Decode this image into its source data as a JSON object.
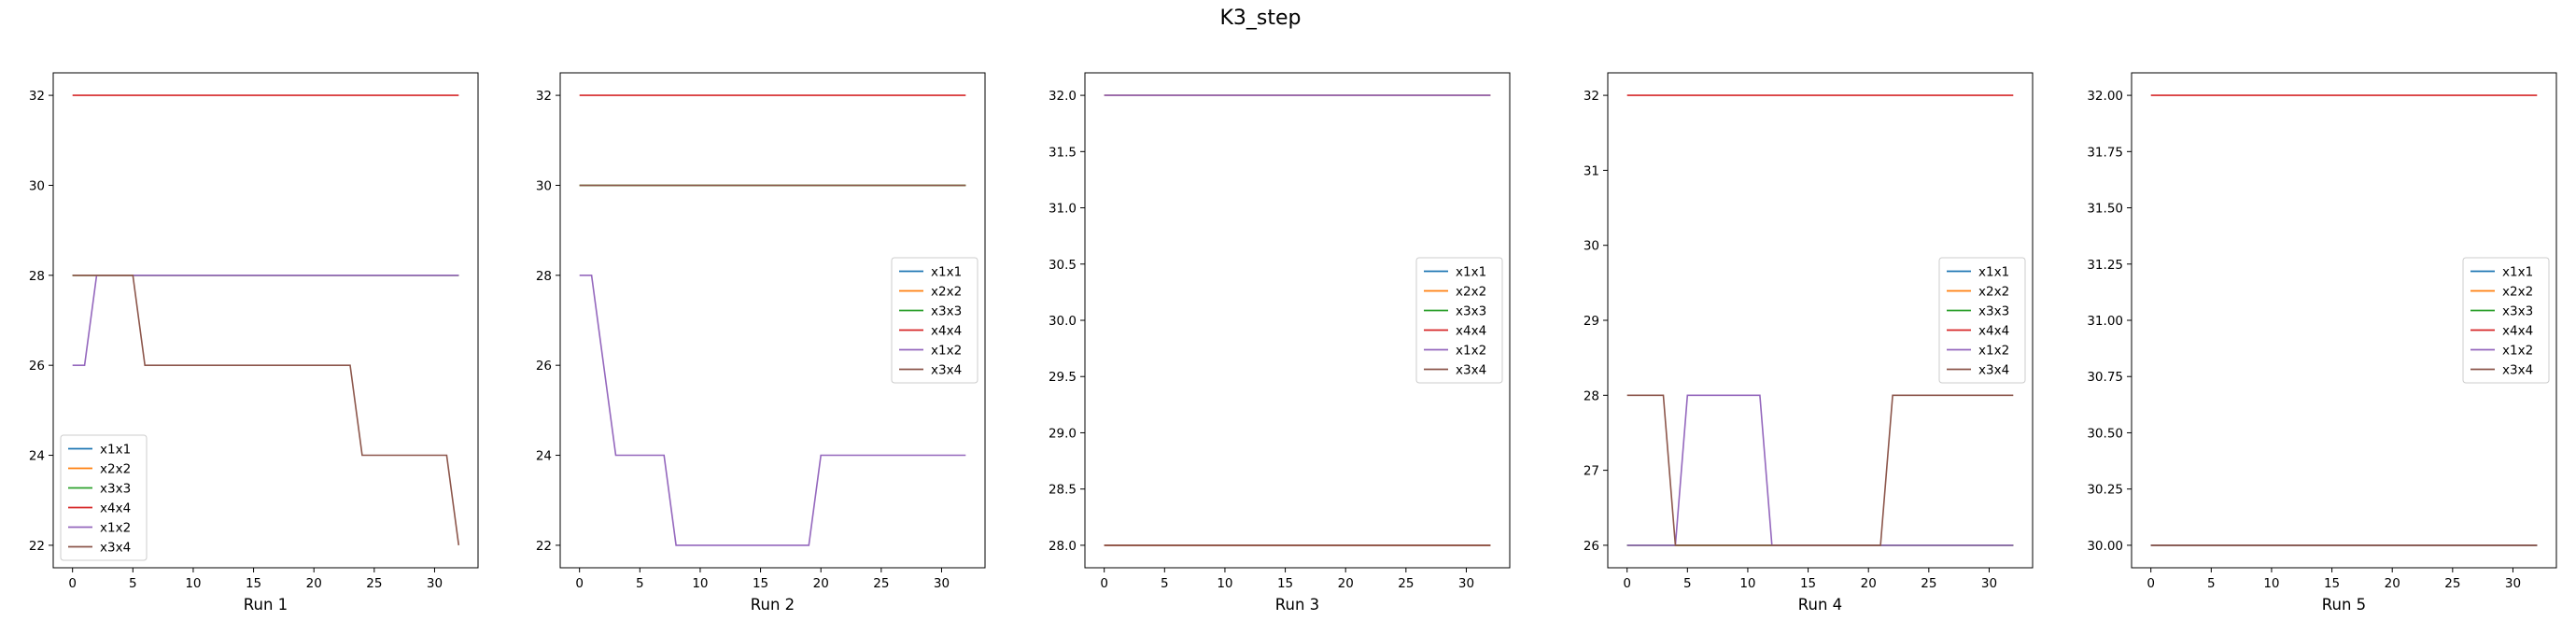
{
  "figure": {
    "title": "K3_step"
  },
  "colors": {
    "x1x1": "#1f77b4",
    "x2x2": "#ff7f0e",
    "x3x3": "#2ca02c",
    "x4x4": "#d62728",
    "x1x2": "#9467bd",
    "x3x4": "#8c564b"
  },
  "chart_data": [
    {
      "type": "line",
      "xlabel": "Run 1",
      "xlim": [
        -1.6,
        33.6
      ],
      "ylim": [
        21.5,
        32.5
      ],
      "xticks": [
        0,
        5,
        10,
        15,
        20,
        25,
        30
      ],
      "yticks": [
        22,
        24,
        26,
        28,
        30,
        32
      ],
      "ytick_labels": [
        "22",
        "24",
        "26",
        "28",
        "30",
        "32"
      ],
      "legend_loc": "lower-left",
      "grid": false,
      "series": [
        {
          "name": "x1x1",
          "points": [
            [
              0,
              28
            ],
            [
              32,
              28
            ]
          ]
        },
        {
          "name": "x2x2",
          "points": [
            [
              0,
              28
            ],
            [
              32,
              28
            ]
          ]
        },
        {
          "name": "x3x3",
          "points": [
            [
              0,
              28
            ],
            [
              32,
              28
            ]
          ]
        },
        {
          "name": "x4x4",
          "points": [
            [
              0,
              32
            ],
            [
              32,
              32
            ]
          ]
        },
        {
          "name": "x1x2",
          "points": [
            [
              0,
              26
            ],
            [
              1,
              26
            ],
            [
              2,
              28
            ],
            [
              32,
              28
            ]
          ]
        },
        {
          "name": "x3x4",
          "points": [
            [
              0,
              28
            ],
            [
              5,
              28
            ],
            [
              6,
              26
            ],
            [
              23,
              26
            ],
            [
              24,
              24
            ],
            [
              31,
              24
            ],
            [
              32,
              22
            ]
          ]
        }
      ]
    },
    {
      "type": "line",
      "xlabel": "Run 2",
      "xlim": [
        -1.6,
        33.6
      ],
      "ylim": [
        21.5,
        32.5
      ],
      "xticks": [
        0,
        5,
        10,
        15,
        20,
        25,
        30
      ],
      "yticks": [
        22,
        24,
        26,
        28,
        30,
        32
      ],
      "ytick_labels": [
        "22",
        "24",
        "26",
        "28",
        "30",
        "32"
      ],
      "legend_loc": "center-right",
      "grid": false,
      "series": [
        {
          "name": "x1x1",
          "points": [
            [
              0,
              30
            ],
            [
              32,
              30
            ]
          ]
        },
        {
          "name": "x2x2",
          "points": [
            [
              0,
              30
            ],
            [
              32,
              30
            ]
          ]
        },
        {
          "name": "x3x3",
          "points": [
            [
              0,
              30
            ],
            [
              32,
              30
            ]
          ]
        },
        {
          "name": "x4x4",
          "points": [
            [
              0,
              32
            ],
            [
              32,
              32
            ]
          ]
        },
        {
          "name": "x1x2",
          "points": [
            [
              0,
              28
            ],
            [
              1,
              28
            ],
            [
              3,
              24
            ],
            [
              7,
              24
            ],
            [
              8,
              22
            ],
            [
              19,
              22
            ],
            [
              20,
              24
            ],
            [
              32,
              24
            ]
          ]
        },
        {
          "name": "x3x4",
          "points": [
            [
              0,
              30
            ],
            [
              32,
              30
            ]
          ]
        }
      ]
    },
    {
      "type": "line",
      "xlabel": "Run 3",
      "xlim": [
        -1.6,
        33.6
      ],
      "ylim": [
        27.8,
        32.2
      ],
      "xticks": [
        0,
        5,
        10,
        15,
        20,
        25,
        30
      ],
      "yticks": [
        28.0,
        28.5,
        29.0,
        29.5,
        30.0,
        30.5,
        31.0,
        31.5,
        32.0
      ],
      "ytick_labels": [
        "28.0",
        "28.5",
        "29.0",
        "29.5",
        "30.0",
        "30.5",
        "31.0",
        "31.5",
        "32.0"
      ],
      "legend_loc": "center-right",
      "grid": false,
      "series": [
        {
          "name": "x1x1",
          "points": [
            [
              0,
              32
            ],
            [
              32,
              32
            ]
          ]
        },
        {
          "name": "x2x2",
          "points": [
            [
              0,
              32
            ],
            [
              32,
              32
            ]
          ]
        },
        {
          "name": "x3x3",
          "points": [
            [
              0,
              28
            ],
            [
              32,
              28
            ]
          ]
        },
        {
          "name": "x4x4",
          "points": [
            [
              0,
              28
            ],
            [
              32,
              28
            ]
          ]
        },
        {
          "name": "x1x2",
          "points": [
            [
              0,
              32
            ],
            [
              32,
              32
            ]
          ]
        },
        {
          "name": "x3x4",
          "points": [
            [
              0,
              28
            ],
            [
              32,
              28
            ]
          ]
        }
      ]
    },
    {
      "type": "line",
      "xlabel": "Run 4",
      "xlim": [
        -1.6,
        33.6
      ],
      "ylim": [
        25.7,
        32.3
      ],
      "xticks": [
        0,
        5,
        10,
        15,
        20,
        25,
        30
      ],
      "yticks": [
        26,
        27,
        28,
        29,
        30,
        31,
        32
      ],
      "ytick_labels": [
        "26",
        "27",
        "28",
        "29",
        "30",
        "31",
        "32"
      ],
      "legend_loc": "center-right",
      "grid": false,
      "series": [
        {
          "name": "x1x1",
          "points": [
            [
              0,
              26
            ],
            [
              32,
              26
            ]
          ]
        },
        {
          "name": "x2x2",
          "points": [
            [
              0,
              26
            ],
            [
              32,
              26
            ]
          ]
        },
        {
          "name": "x3x3",
          "points": [
            [
              0,
              26
            ],
            [
              32,
              26
            ]
          ]
        },
        {
          "name": "x4x4",
          "points": [
            [
              0,
              32
            ],
            [
              32,
              32
            ]
          ]
        },
        {
          "name": "x1x2",
          "points": [
            [
              0,
              26
            ],
            [
              4,
              26
            ],
            [
              5,
              28
            ],
            [
              11,
              28
            ],
            [
              12,
              26
            ],
            [
              32,
              26
            ]
          ]
        },
        {
          "name": "x3x4",
          "points": [
            [
              0,
              28
            ],
            [
              3,
              28
            ],
            [
              4,
              26
            ],
            [
              21,
              26
            ],
            [
              22,
              28
            ],
            [
              32,
              28
            ]
          ]
        }
      ]
    },
    {
      "type": "line",
      "xlabel": "Run 5",
      "xlim": [
        -1.6,
        33.6
      ],
      "ylim": [
        29.9,
        32.1
      ],
      "xticks": [
        0,
        5,
        10,
        15,
        20,
        25,
        30
      ],
      "yticks": [
        30.0,
        30.25,
        30.5,
        30.75,
        31.0,
        31.25,
        31.5,
        31.75,
        32.0
      ],
      "ytick_labels": [
        "30.00",
        "30.25",
        "30.50",
        "30.75",
        "31.00",
        "31.25",
        "31.50",
        "31.75",
        "32.00"
      ],
      "legend_loc": "center-right",
      "grid": false,
      "series": [
        {
          "name": "x1x1",
          "points": [
            [
              0,
              30
            ],
            [
              32,
              30
            ]
          ]
        },
        {
          "name": "x2x2",
          "points": [
            [
              0,
              30
            ],
            [
              32,
              30
            ]
          ]
        },
        {
          "name": "x3x3",
          "points": [
            [
              0,
              30
            ],
            [
              32,
              30
            ]
          ]
        },
        {
          "name": "x4x4",
          "points": [
            [
              0,
              32
            ],
            [
              32,
              32
            ]
          ]
        },
        {
          "name": "x1x2",
          "points": [
            [
              0,
              30
            ],
            [
              32,
              30
            ]
          ]
        },
        {
          "name": "x3x4",
          "points": [
            [
              0,
              30
            ],
            [
              32,
              30
            ]
          ]
        }
      ]
    }
  ]
}
